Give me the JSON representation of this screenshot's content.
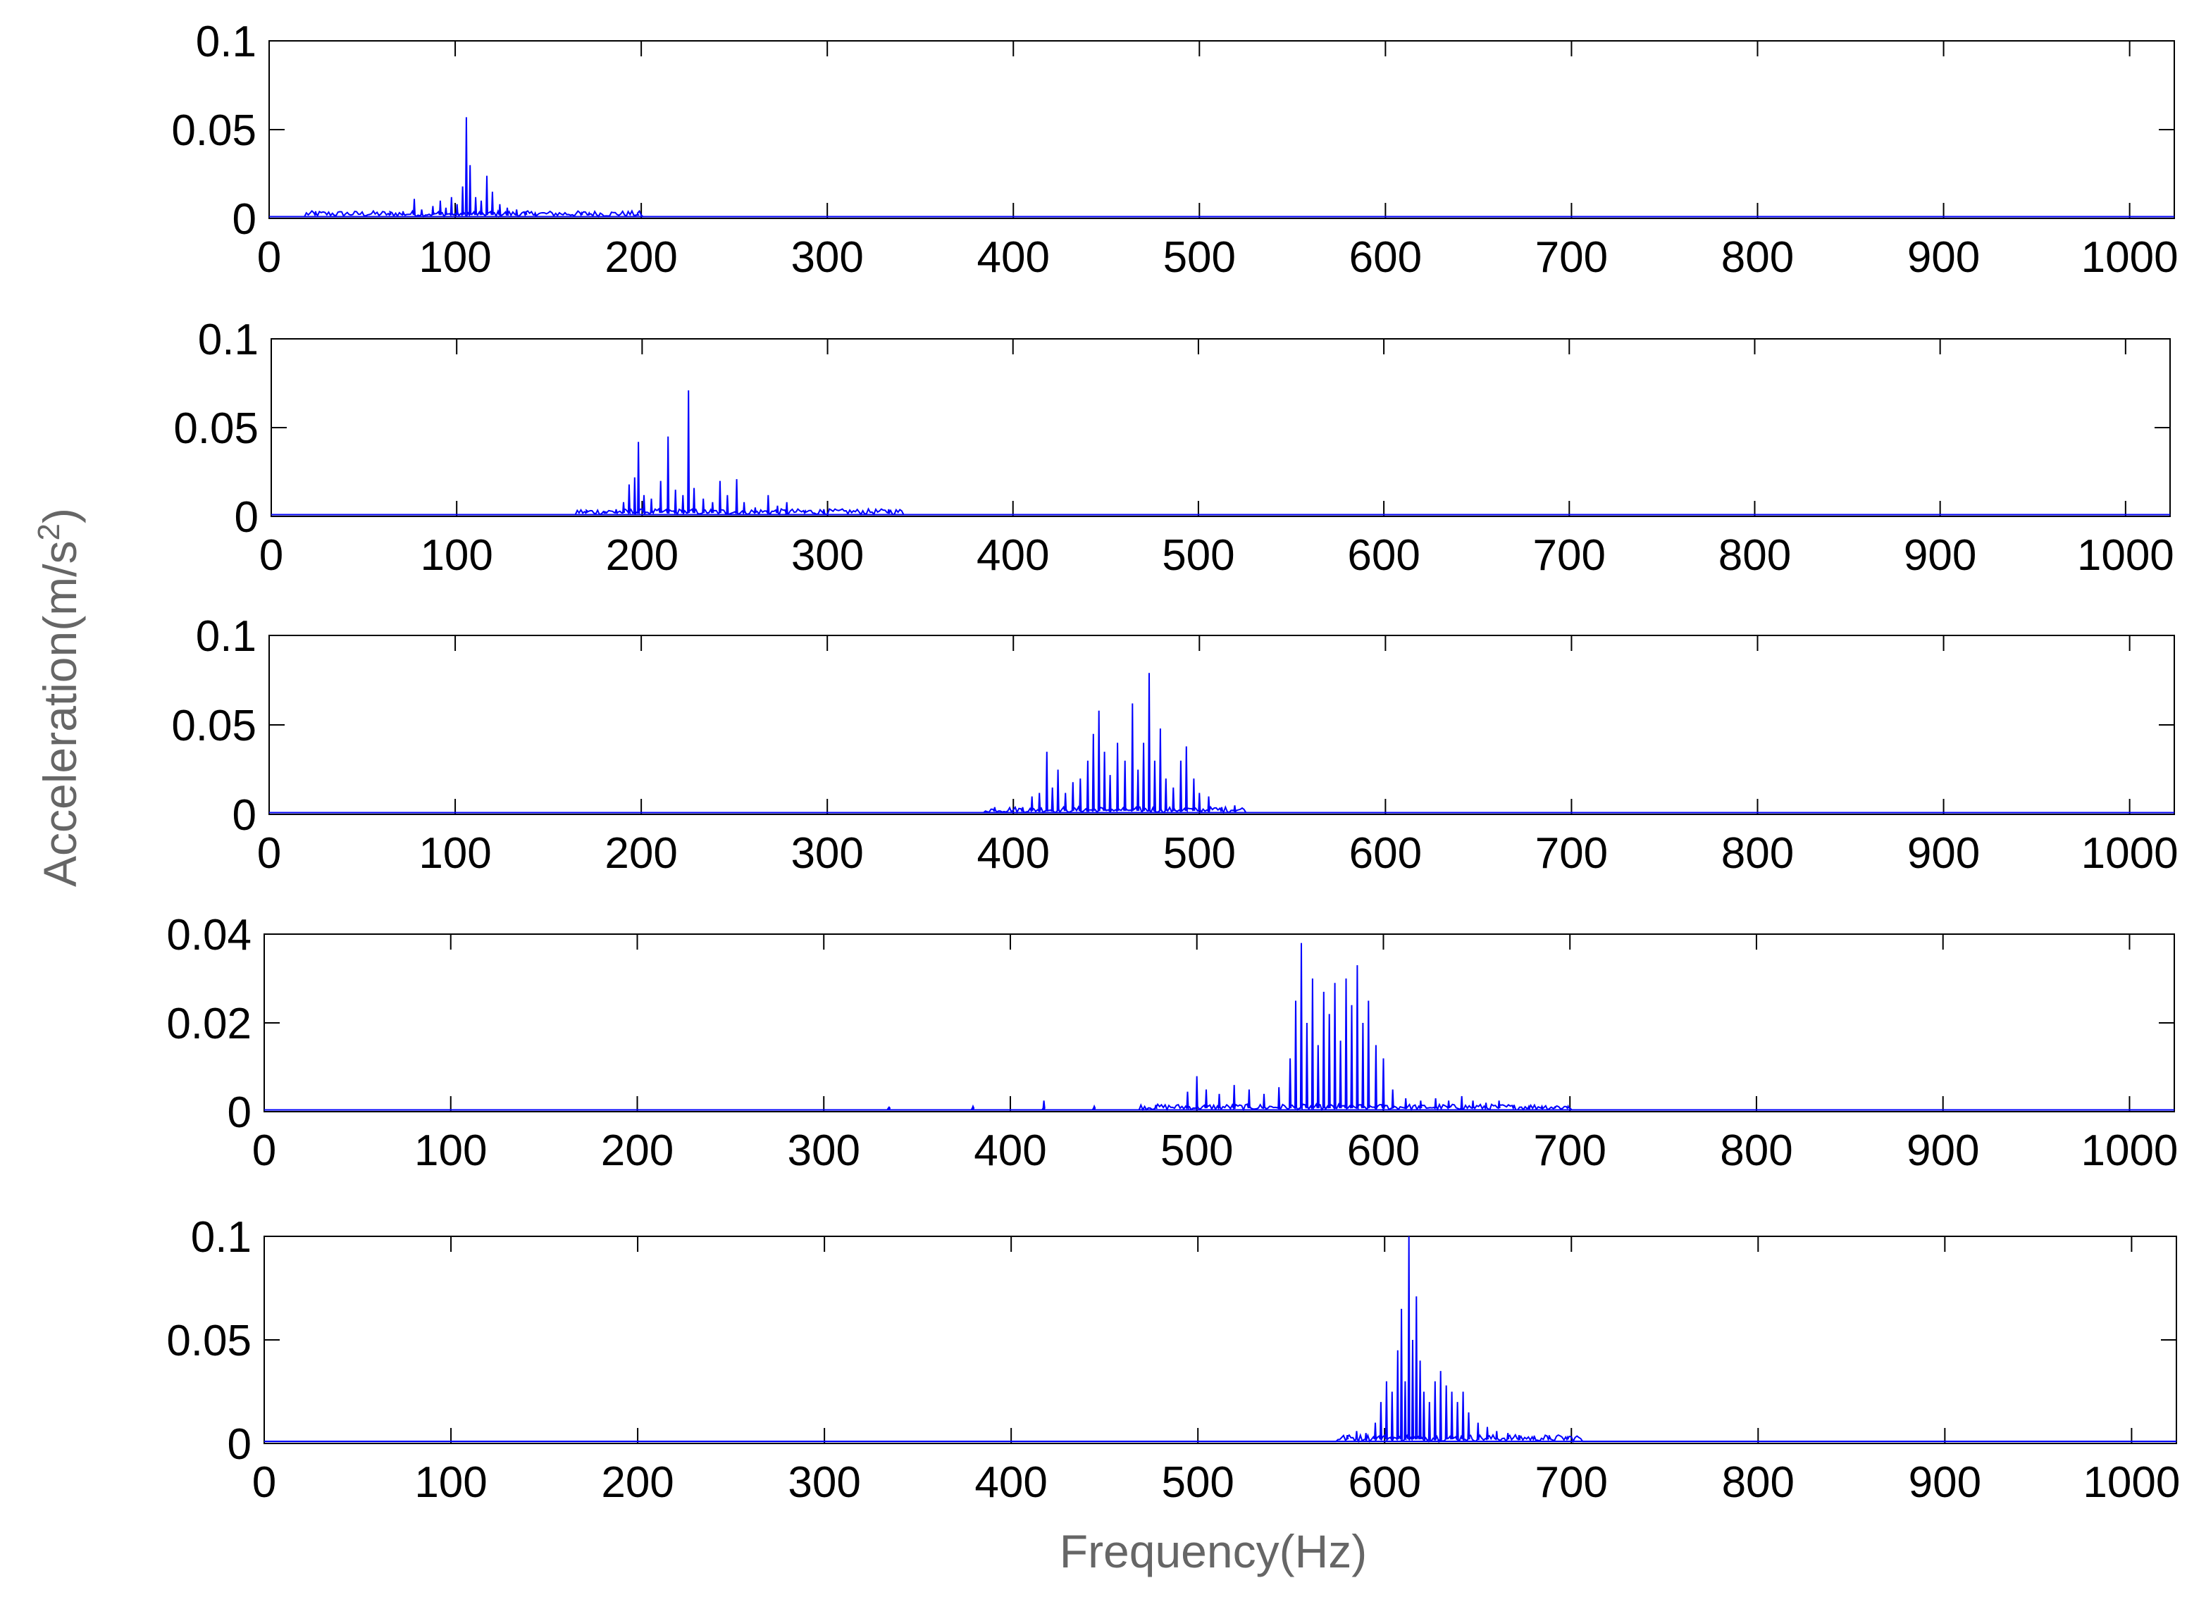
{
  "figure": {
    "xlabel": "Frequency(Hz)",
    "ylabel": "Acceleration(m/s",
    "ylabel_sup": "2",
    "ylabel_close": ")"
  },
  "colors": {
    "series": "#0000ff",
    "axes": "#000000",
    "baseline": "#0000ff"
  },
  "chart_data": [
    {
      "type": "line",
      "xlim": [
        0,
        1024
      ],
      "ylim": [
        0,
        0.1
      ],
      "xticks": [
        0,
        100,
        200,
        300,
        400,
        500,
        600,
        700,
        800,
        900,
        1000
      ],
      "yticks": [
        0,
        0.05,
        0.1
      ],
      "ytick_labels": [
        "0",
        "0.05",
        "0.1"
      ],
      "band": [
        20,
        200
      ],
      "floor": 0.002,
      "peaks": [
        [
          25,
          0.004
        ],
        [
          65,
          0.003
        ],
        [
          72,
          0.004
        ],
        [
          78,
          0.011
        ],
        [
          82,
          0.005
        ],
        [
          88,
          0.007
        ],
        [
          92,
          0.01
        ],
        [
          95,
          0.006
        ],
        [
          98,
          0.012
        ],
        [
          101,
          0.008
        ],
        [
          104,
          0.018
        ],
        [
          106,
          0.057
        ],
        [
          108,
          0.03
        ],
        [
          111,
          0.012
        ],
        [
          114,
          0.01
        ],
        [
          117,
          0.024
        ],
        [
          120,
          0.015
        ],
        [
          124,
          0.008
        ],
        [
          128,
          0.006
        ],
        [
          133,
          0.005
        ],
        [
          138,
          0.004
        ],
        [
          143,
          0.003
        ],
        [
          168,
          0.003
        ],
        [
          172,
          0.003
        ],
        [
          198,
          0.002
        ]
      ]
    },
    {
      "type": "line",
      "xlim": [
        0,
        1024
      ],
      "ylim": [
        0,
        0.1
      ],
      "xticks": [
        0,
        100,
        200,
        300,
        400,
        500,
        600,
        700,
        800,
        900,
        1000
      ],
      "yticks": [
        0,
        0.05,
        0.1
      ],
      "ytick_labels": [
        "0",
        "0.05",
        "0.1"
      ],
      "band": [
        165,
        340
      ],
      "floor": 0.002,
      "peaks": [
        [
          170,
          0.003
        ],
        [
          180,
          0.002
        ],
        [
          186,
          0.004
        ],
        [
          190,
          0.008
        ],
        [
          193,
          0.018
        ],
        [
          196,
          0.022
        ],
        [
          198,
          0.042
        ],
        [
          201,
          0.012
        ],
        [
          205,
          0.01
        ],
        [
          210,
          0.02
        ],
        [
          214,
          0.045
        ],
        [
          218,
          0.015
        ],
        [
          222,
          0.012
        ],
        [
          225,
          0.071
        ],
        [
          228,
          0.016
        ],
        [
          233,
          0.01
        ],
        [
          238,
          0.008
        ],
        [
          242,
          0.02
        ],
        [
          246,
          0.012
        ],
        [
          251,
          0.021
        ],
        [
          255,
          0.008
        ],
        [
          261,
          0.005
        ],
        [
          268,
          0.012
        ],
        [
          273,
          0.006
        ],
        [
          278,
          0.008
        ],
        [
          288,
          0.003
        ],
        [
          298,
          0.004
        ],
        [
          333,
          0.004
        ]
      ]
    },
    {
      "type": "line",
      "xlim": [
        0,
        1024
      ],
      "ylim": [
        0,
        0.1
      ],
      "xticks": [
        0,
        100,
        200,
        300,
        400,
        500,
        600,
        700,
        800,
        900,
        1000
      ],
      "yticks": [
        0,
        0.05,
        0.1
      ],
      "ytick_labels": [
        "0",
        "0.05",
        "0.1"
      ],
      "band": [
        385,
        525
      ],
      "floor": 0.002,
      "peaks": [
        [
          390,
          0.004
        ],
        [
          405,
          0.004
        ],
        [
          410,
          0.01
        ],
        [
          414,
          0.012
        ],
        [
          418,
          0.035
        ],
        [
          421,
          0.015
        ],
        [
          424,
          0.025
        ],
        [
          428,
          0.012
        ],
        [
          432,
          0.018
        ],
        [
          436,
          0.02
        ],
        [
          440,
          0.03
        ],
        [
          443,
          0.045
        ],
        [
          446,
          0.058
        ],
        [
          449,
          0.035
        ],
        [
          452,
          0.022
        ],
        [
          456,
          0.04
        ],
        [
          460,
          0.03
        ],
        [
          464,
          0.062
        ],
        [
          467,
          0.025
        ],
        [
          470,
          0.04
        ],
        [
          473,
          0.079
        ],
        [
          476,
          0.03
        ],
        [
          479,
          0.048
        ],
        [
          482,
          0.02
        ],
        [
          486,
          0.015
        ],
        [
          490,
          0.03
        ],
        [
          493,
          0.038
        ],
        [
          497,
          0.02
        ],
        [
          500,
          0.012
        ],
        [
          505,
          0.01
        ],
        [
          512,
          0.004
        ],
        [
          519,
          0.005
        ]
      ]
    },
    {
      "type": "line",
      "xlim": [
        0,
        1024
      ],
      "ylim": [
        0,
        0.04
      ],
      "xticks": [
        0,
        100,
        200,
        300,
        400,
        500,
        600,
        700,
        800,
        900,
        1000
      ],
      "yticks": [
        0,
        0.02,
        0.04
      ],
      "ytick_labels": [
        "0",
        "0.02",
        "0.04"
      ],
      "band": [
        470,
        700
      ],
      "floor": 0.0008,
      "peaks": [
        [
          335,
          0.001
        ],
        [
          380,
          0.0012
        ],
        [
          418,
          0.0025
        ],
        [
          445,
          0.0012
        ],
        [
          478,
          0.0015
        ],
        [
          495,
          0.0045
        ],
        [
          500,
          0.008
        ],
        [
          505,
          0.005
        ],
        [
          512,
          0.004
        ],
        [
          520,
          0.006
        ],
        [
          528,
          0.005
        ],
        [
          536,
          0.004
        ],
        [
          544,
          0.0055
        ],
        [
          550,
          0.012
        ],
        [
          553,
          0.025
        ],
        [
          556,
          0.038
        ],
        [
          559,
          0.02
        ],
        [
          562,
          0.03
        ],
        [
          565,
          0.015
        ],
        [
          568,
          0.027
        ],
        [
          571,
          0.022
        ],
        [
          574,
          0.029
        ],
        [
          577,
          0.016
        ],
        [
          580,
          0.03
        ],
        [
          583,
          0.024
        ],
        [
          586,
          0.033
        ],
        [
          589,
          0.02
        ],
        [
          592,
          0.025
        ],
        [
          596,
          0.015
        ],
        [
          600,
          0.012
        ],
        [
          605,
          0.005
        ],
        [
          612,
          0.003
        ],
        [
          620,
          0.0025
        ],
        [
          628,
          0.003
        ],
        [
          635,
          0.0025
        ],
        [
          642,
          0.0035
        ],
        [
          648,
          0.0025
        ],
        [
          655,
          0.002
        ],
        [
          662,
          0.0025
        ],
        [
          670,
          0.0015
        ],
        [
          678,
          0.0012
        ],
        [
          685,
          0.0012
        ],
        [
          692,
          0.001
        ],
        [
          699,
          0.0012
        ]
      ]
    },
    {
      "type": "line",
      "xlim": [
        0,
        1024
      ],
      "ylim": [
        0,
        0.1
      ],
      "xticks": [
        0,
        100,
        200,
        300,
        400,
        500,
        600,
        700,
        800,
        900,
        1000
      ],
      "yticks": [
        0,
        0.05,
        0.1
      ],
      "ytick_labels": [
        "0",
        "0.05",
        "0.1"
      ],
      "band": [
        575,
        705
      ],
      "floor": 0.002,
      "peaks": [
        [
          580,
          0.004
        ],
        [
          585,
          0.006
        ],
        [
          590,
          0.005
        ],
        [
          595,
          0.01
        ],
        [
          598,
          0.02
        ],
        [
          601,
          0.03
        ],
        [
          604,
          0.025
        ],
        [
          607,
          0.045
        ],
        [
          609,
          0.065
        ],
        [
          611,
          0.03
        ],
        [
          613,
          0.1
        ],
        [
          615,
          0.05
        ],
        [
          617,
          0.071
        ],
        [
          619,
          0.04
        ],
        [
          621,
          0.025
        ],
        [
          624,
          0.02
        ],
        [
          627,
          0.03
        ],
        [
          630,
          0.035
        ],
        [
          633,
          0.028
        ],
        [
          636,
          0.025
        ],
        [
          639,
          0.02
        ],
        [
          642,
          0.025
        ],
        [
          645,
          0.015
        ],
        [
          650,
          0.01
        ],
        [
          655,
          0.008
        ],
        [
          660,
          0.006
        ],
        [
          666,
          0.005
        ],
        [
          672,
          0.004
        ],
        [
          680,
          0.003
        ],
        [
          688,
          0.003
        ],
        [
          698,
          0.003
        ]
      ]
    }
  ]
}
